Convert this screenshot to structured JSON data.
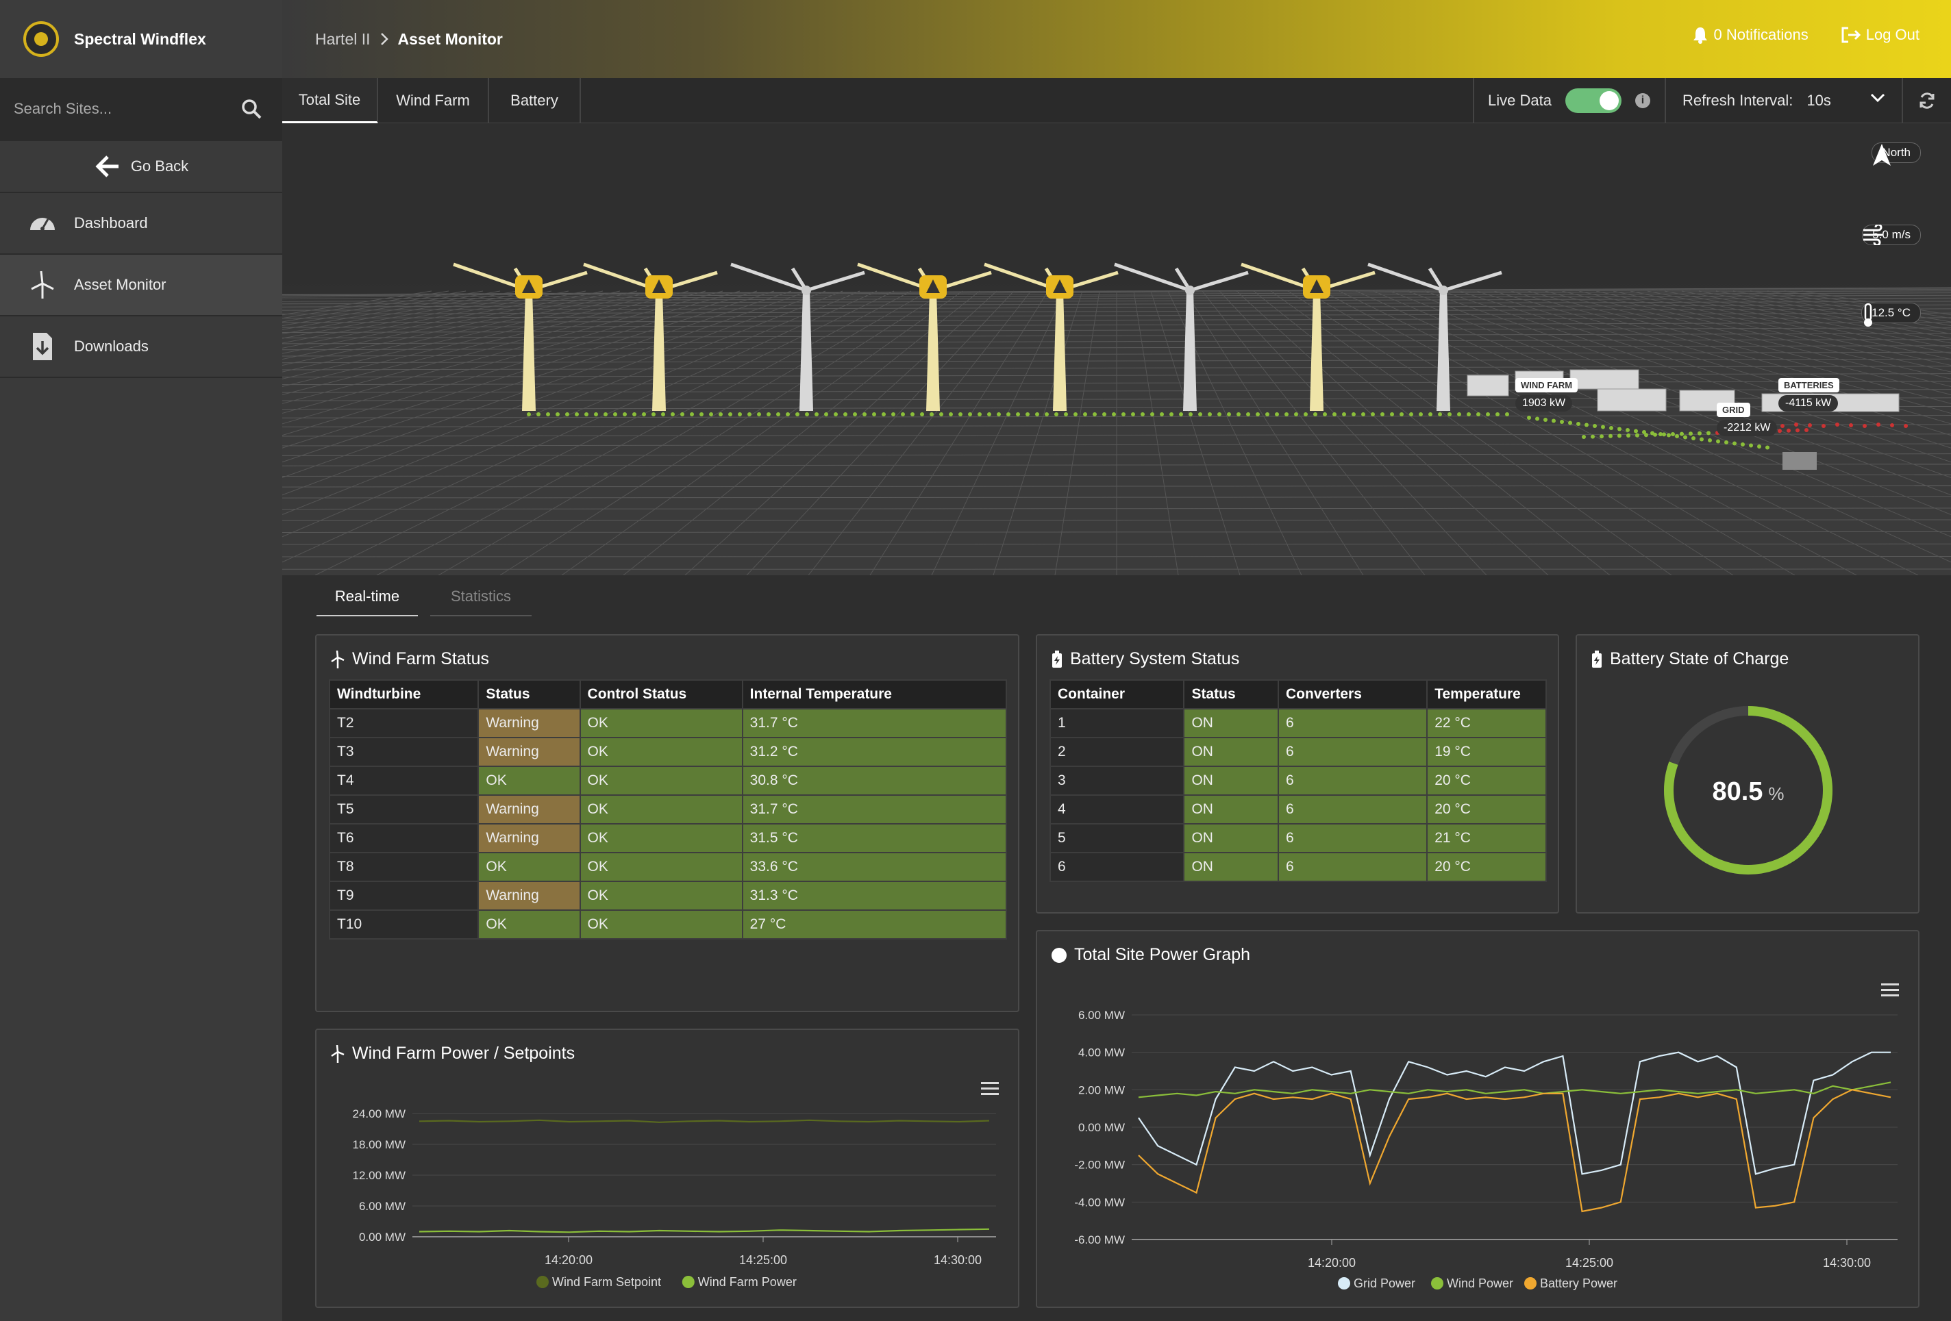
{
  "brand": {
    "name": "Spectral Windflex",
    "logo_text": "SPECTRAL"
  },
  "search": {
    "placeholder": "Search Sites..."
  },
  "nav": {
    "go_back": "Go Back",
    "items": [
      {
        "label": "Dashboard",
        "icon": "gauge-icon"
      },
      {
        "label": "Asset Monitor",
        "icon": "wind-turbine-icon",
        "active": true
      },
      {
        "label": "Downloads",
        "icon": "download-file-icon"
      }
    ]
  },
  "header": {
    "breadcrumb": [
      "Hartel II",
      "Asset Monitor"
    ],
    "notifications": "0 Notifications",
    "logout": "Log Out"
  },
  "tabs": [
    "Total Site",
    "Wind Farm",
    "Battery"
  ],
  "live_data": {
    "label": "Live Data",
    "on": true
  },
  "refresh": {
    "label": "Refresh Interval:",
    "value": "10s"
  },
  "scene": {
    "compass": "North",
    "wind_speed": "5.0 m/s",
    "temperature": "12.5 °C",
    "labels": {
      "wind_farm": {
        "title": "WIND FARM",
        "value": "1903 kW"
      },
      "grid": {
        "title": "GRID",
        "value": "-2212 kW"
      },
      "batteries": {
        "title": "BATTERIES",
        "value": "-4115 kW"
      }
    },
    "turbines": [
      {
        "warning": true
      },
      {
        "warning": true
      },
      {
        "warning": false
      },
      {
        "warning": true
      },
      {
        "warning": true
      },
      {
        "warning": false
      },
      {
        "warning": true
      },
      {
        "warning": false
      }
    ]
  },
  "subtabs": [
    "Real-time",
    "Statistics"
  ],
  "wind_farm_status": {
    "title": "Wind Farm Status",
    "columns": [
      "Windturbine",
      "Status",
      "Control Status",
      "Internal Temperature"
    ],
    "rows": [
      [
        "T2",
        "Warning",
        "OK",
        "31.7 °C"
      ],
      [
        "T3",
        "Warning",
        "OK",
        "31.2 °C"
      ],
      [
        "T4",
        "OK",
        "OK",
        "30.8 °C"
      ],
      [
        "T5",
        "Warning",
        "OK",
        "31.7 °C"
      ],
      [
        "T6",
        "Warning",
        "OK",
        "31.5 °C"
      ],
      [
        "T8",
        "OK",
        "OK",
        "33.6 °C"
      ],
      [
        "T9",
        "Warning",
        "OK",
        "31.3 °C"
      ],
      [
        "T10",
        "OK",
        "OK",
        "27 °C"
      ]
    ]
  },
  "battery_status": {
    "title": "Battery System Status",
    "columns": [
      "Container",
      "Status",
      "Converters",
      "Temperature"
    ],
    "rows": [
      [
        "1",
        "ON",
        "6",
        "22 °C"
      ],
      [
        "2",
        "ON",
        "6",
        "19 °C"
      ],
      [
        "3",
        "ON",
        "6",
        "20 °C"
      ],
      [
        "4",
        "ON",
        "6",
        "20 °C"
      ],
      [
        "5",
        "ON",
        "6",
        "21 °C"
      ],
      [
        "6",
        "ON",
        "6",
        "20 °C"
      ]
    ]
  },
  "soc": {
    "title": "Battery State of Charge",
    "value": "80.5",
    "unit": "%",
    "fraction": 0.805
  },
  "colors": {
    "accent_green": "#8bbf3a",
    "warning": "#8a7240",
    "ok": "#5e7c35",
    "grid_line": "#d8ecf8",
    "wind_line": "#8bbf3a",
    "battery_line": "#f0a830",
    "setpoint_line": "#5a6a1f"
  },
  "wind_power_chart": {
    "title": "Wind Farm Power / Setpoints",
    "chart_data": {
      "type": "line",
      "y_ticks": [
        "24.00 MW",
        "18.00 MW",
        "12.00 MW",
        "6.00 MW",
        "0.00 MW"
      ],
      "ylim": [
        0,
        24
      ],
      "x_ticks": [
        "14:20:00",
        "14:25:00",
        "14:30:00"
      ],
      "series": [
        {
          "name": "Wind Farm Setpoint",
          "values": [
            22.5,
            22.6,
            22.4,
            22.5,
            22.7,
            22.4,
            22.5,
            22.6,
            22.3,
            22.5,
            22.6,
            22.4,
            22.5,
            22.7,
            22.5,
            22.4,
            22.6,
            22.5,
            22.4,
            22.6
          ]
        },
        {
          "name": "Wind Farm Power",
          "values": [
            1.0,
            1.1,
            1.0,
            1.2,
            1.0,
            0.9,
            1.1,
            1.0,
            1.2,
            1.1,
            1.0,
            1.1,
            1.3,
            1.2,
            1.1,
            1.0,
            1.2,
            1.3,
            1.4,
            1.5
          ]
        }
      ]
    }
  },
  "site_power_chart": {
    "title": "Total Site Power Graph",
    "chart_data": {
      "type": "line",
      "y_ticks": [
        "6.00 MW",
        "4.00 MW",
        "2.00 MW",
        "0.00 MW",
        "-2.00 MW",
        "-4.00 MW",
        "-6.00 MW"
      ],
      "ylim": [
        -6,
        6
      ],
      "x_ticks": [
        "14:20:00",
        "14:25:00",
        "14:30:00"
      ],
      "series": [
        {
          "name": "Grid Power",
          "values": [
            0.5,
            -1.0,
            -1.5,
            -2.0,
            1.5,
            3.2,
            3.0,
            3.5,
            3.0,
            3.2,
            2.8,
            3.0,
            -1.5,
            1.5,
            3.5,
            3.2,
            2.8,
            3.0,
            2.7,
            3.2,
            3.0,
            3.5,
            3.8,
            -2.5,
            -2.3,
            -2.0,
            3.5,
            3.8,
            4.0,
            3.5,
            3.8,
            3.2,
            -2.5,
            -2.2,
            -2.0,
            2.5,
            2.8,
            3.5,
            4.0,
            4.0
          ]
        },
        {
          "name": "Wind Power",
          "values": [
            1.6,
            1.7,
            1.8,
            1.7,
            1.9,
            1.8,
            2.0,
            1.9,
            1.8,
            2.0,
            1.9,
            1.8,
            2.0,
            1.9,
            1.8,
            2.0,
            1.9,
            2.0,
            1.8,
            1.9,
            2.0,
            1.8,
            1.9,
            2.0,
            1.9,
            1.8,
            1.9,
            2.0,
            1.9,
            1.8,
            1.9,
            2.0,
            1.8,
            1.9,
            2.0,
            1.8,
            2.2,
            2.0,
            2.2,
            2.4
          ]
        },
        {
          "name": "Battery Power",
          "values": [
            -1.5,
            -2.5,
            -3.0,
            -3.5,
            0.5,
            1.5,
            1.8,
            1.5,
            1.6,
            1.5,
            1.8,
            1.5,
            -3.0,
            -0.5,
            1.5,
            1.6,
            1.8,
            1.5,
            1.6,
            1.5,
            1.6,
            1.8,
            1.8,
            -4.5,
            -4.3,
            -4.0,
            1.5,
            1.6,
            1.8,
            1.6,
            1.8,
            1.5,
            -4.3,
            -4.2,
            -4.0,
            0.5,
            1.5,
            2.0,
            1.8,
            1.6
          ]
        }
      ]
    }
  }
}
